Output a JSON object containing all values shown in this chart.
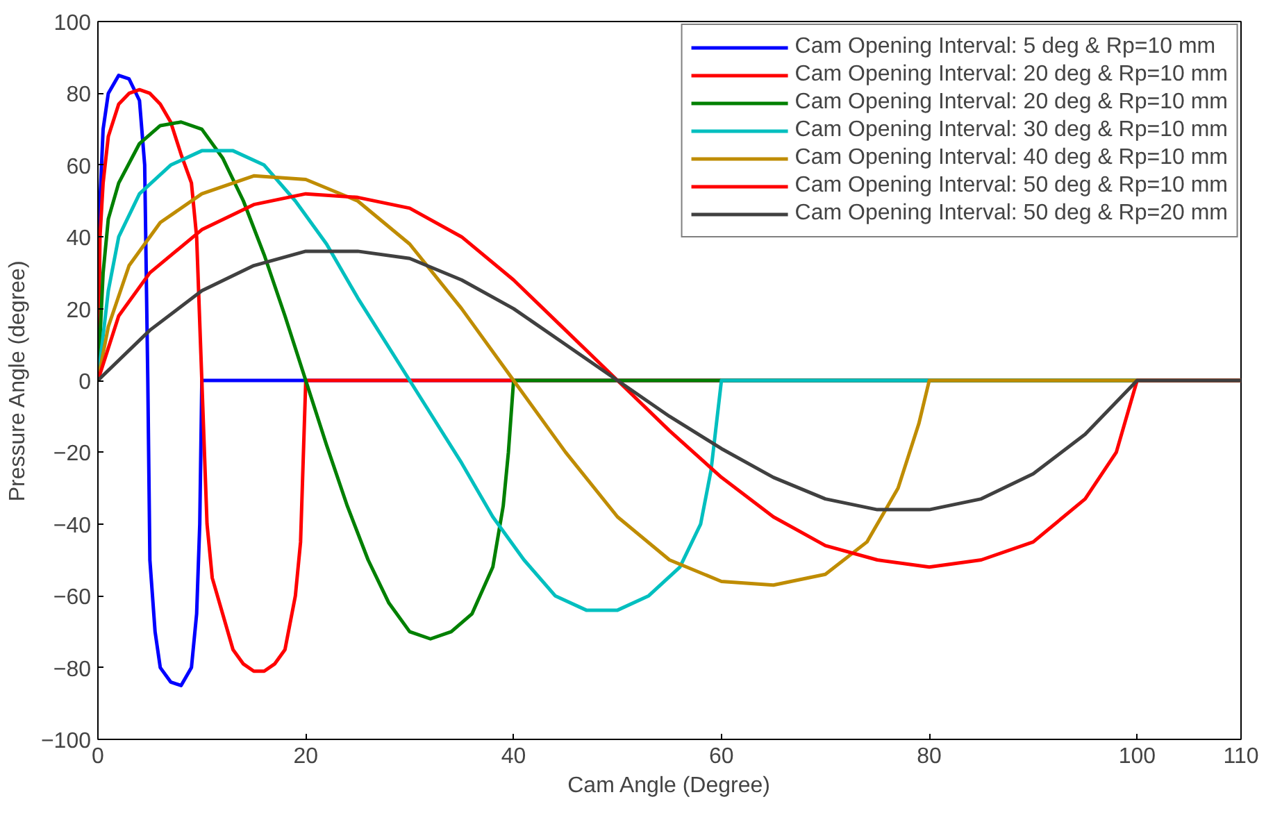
{
  "chart_data": {
    "type": "line",
    "xlabel": "Cam Angle (Degree)",
    "ylabel": "Pressure Angle (degree)",
    "xlim": [
      0,
      110
    ],
    "ylim": [
      -100,
      100
    ],
    "xticks": [
      0,
      20,
      40,
      60,
      80,
      100,
      110
    ],
    "yticks": [
      -100,
      -80,
      -60,
      -40,
      -20,
      0,
      20,
      40,
      60,
      80,
      100
    ],
    "grid": false,
    "legend": "top right",
    "series": [
      {
        "name": "Cam Opening Interval: 5 deg & Rp=10 mm",
        "color": "#0000ff",
        "x": [
          0,
          0.2,
          0.5,
          1,
          2,
          3,
          4,
          4.5,
          4.8,
          5,
          5.5,
          6,
          7,
          8,
          9,
          9.5,
          9.8,
          10,
          110
        ],
        "values": [
          0,
          50,
          70,
          80,
          85,
          84,
          78,
          60,
          0,
          -50,
          -70,
          -80,
          -84,
          -85,
          -80,
          -65,
          -40,
          0,
          0
        ]
      },
      {
        "name": "Cam Opening Interval: 20 deg & Rp=10 mm",
        "color": "#ff0000",
        "x": [
          0,
          0.2,
          0.5,
          1,
          2,
          3,
          4,
          5,
          6,
          7,
          8,
          9,
          9.5,
          10,
          10.5,
          11,
          12,
          13,
          14,
          15,
          16,
          17,
          18,
          19,
          19.5,
          20,
          110
        ],
        "values": [
          0,
          40,
          55,
          68,
          77,
          80,
          81,
          80,
          77,
          72,
          63,
          55,
          40,
          0,
          -40,
          -55,
          -65,
          -75,
          -79,
          -81,
          -81,
          -79,
          -75,
          -60,
          -45,
          0,
          0
        ]
      },
      {
        "name": "Cam Opening Interval: 20 deg & Rp=10 mm",
        "color": "#008000",
        "x": [
          0,
          0.5,
          1,
          2,
          4,
          6,
          8,
          10,
          12,
          14,
          16,
          18,
          20,
          22,
          24,
          26,
          28,
          30,
          32,
          34,
          36,
          38,
          39,
          39.5,
          40,
          110
        ],
        "values": [
          0,
          30,
          45,
          55,
          66,
          71,
          72,
          70,
          62,
          50,
          35,
          18,
          0,
          -18,
          -35,
          -50,
          -62,
          -70,
          -72,
          -70,
          -65,
          -52,
          -35,
          -20,
          0,
          0
        ]
      },
      {
        "name": "Cam Opening Interval: 30 deg & Rp=10 mm",
        "color": "#00bfbf",
        "x": [
          0,
          1,
          2,
          4,
          7,
          10,
          13,
          16,
          19,
          22,
          25,
          30,
          35,
          38,
          41,
          44,
          47,
          50,
          53,
          56,
          58,
          59,
          60,
          110
        ],
        "values": [
          0,
          25,
          40,
          52,
          60,
          64,
          64,
          60,
          50,
          38,
          23,
          0,
          -23,
          -38,
          -50,
          -60,
          -64,
          -64,
          -60,
          -52,
          -40,
          -25,
          0,
          0
        ]
      },
      {
        "name": "Cam Opening Interval: 40 deg & Rp=10 mm",
        "color": "#bf8c00",
        "x": [
          0,
          1,
          3,
          6,
          10,
          15,
          20,
          25,
          30,
          35,
          40,
          45,
          50,
          55,
          60,
          65,
          70,
          74,
          77,
          79,
          80,
          110
        ],
        "values": [
          0,
          15,
          32,
          44,
          52,
          57,
          56,
          50,
          38,
          20,
          0,
          -20,
          -38,
          -50,
          -56,
          -57,
          -54,
          -45,
          -30,
          -12,
          0,
          0
        ]
      },
      {
        "name": "Cam Opening Interval: 50 deg & Rp=10 mm",
        "color": "#ff0000",
        "x": [
          0,
          2,
          5,
          10,
          15,
          20,
          25,
          30,
          35,
          40,
          45,
          50,
          55,
          60,
          65,
          70,
          75,
          80,
          85,
          90,
          95,
          98,
          100,
          110
        ],
        "values": [
          0,
          18,
          30,
          42,
          49,
          52,
          51,
          48,
          40,
          28,
          14,
          0,
          -14,
          -27,
          -38,
          -46,
          -50,
          -52,
          -50,
          -45,
          -33,
          -20,
          0,
          0
        ]
      },
      {
        "name": "Cam Opening Interval: 50 deg & Rp=20 mm",
        "color": "#404040",
        "x": [
          0,
          5,
          10,
          15,
          20,
          25,
          30,
          35,
          40,
          45,
          50,
          55,
          60,
          65,
          70,
          75,
          80,
          85,
          90,
          95,
          100,
          110
        ],
        "values": [
          0,
          14,
          25,
          32,
          36,
          36,
          34,
          28,
          20,
          10,
          0,
          -10,
          -19,
          -27,
          -33,
          -36,
          -36,
          -33,
          -26,
          -15,
          0,
          0
        ]
      }
    ]
  }
}
